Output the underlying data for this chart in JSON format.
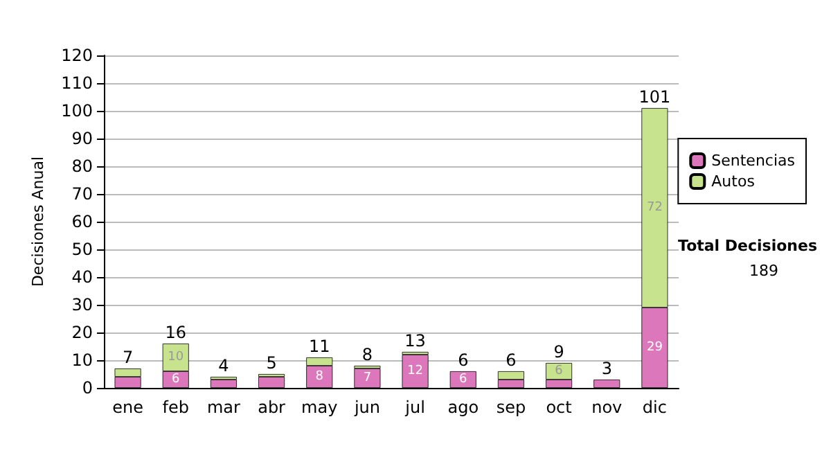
{
  "chart_data": {
    "type": "bar",
    "stacked": true,
    "ylabel": "Decisiones Anual",
    "categories": [
      "ene",
      "feb",
      "mar",
      "abr",
      "may",
      "jun",
      "jul",
      "ago",
      "sep",
      "oct",
      "nov",
      "dic"
    ],
    "series": [
      {
        "name": "Sentencias",
        "color": "#dd77bb",
        "values": [
          4,
          6,
          3,
          4,
          8,
          7,
          12,
          6,
          3,
          3,
          3,
          29
        ],
        "value_labels": [
          null,
          "6",
          null,
          null,
          "8",
          "7",
          "12",
          "6",
          null,
          null,
          null,
          "29"
        ]
      },
      {
        "name": "Autos",
        "color": "#c8e38e",
        "values": [
          3,
          10,
          1,
          1,
          3,
          1,
          1,
          0,
          3,
          6,
          0,
          72
        ],
        "value_labels": [
          null,
          "10",
          null,
          null,
          null,
          null,
          null,
          null,
          null,
          "6",
          null,
          "72"
        ]
      }
    ],
    "totals": [
      "7",
      "16",
      "4",
      "5",
      "11",
      "8",
      "13",
      "6",
      "6",
      "9",
      "3",
      "101"
    ],
    "ylim": [
      0,
      120
    ],
    "yticks": [
      0,
      10,
      20,
      30,
      40,
      50,
      60,
      70,
      80,
      90,
      100,
      110,
      120
    ],
    "grid": "y",
    "legend": "right",
    "annotations": [
      "Total Decisiones",
      "189"
    ]
  }
}
